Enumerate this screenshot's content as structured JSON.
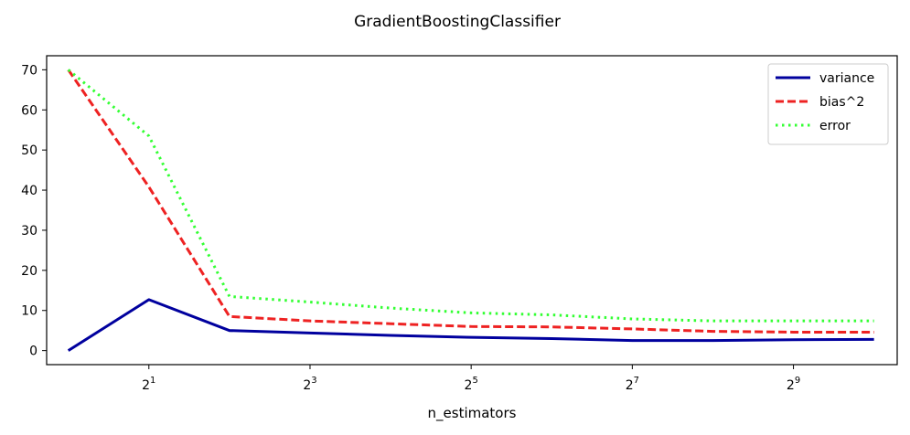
{
  "chart_data": {
    "type": "line",
    "title": "GradientBoostingClassifier",
    "xlabel": "n_estimators",
    "ylabel": "",
    "x_scale": "log2",
    "x": [
      1,
      2,
      4,
      8,
      16,
      32,
      64,
      128,
      256,
      512,
      1024
    ],
    "xlim": [
      0.83,
      1250
    ],
    "ylim": [
      -3.5,
      73.5
    ],
    "x_ticks": [
      {
        "value": 2,
        "base": "2",
        "exp": "1"
      },
      {
        "value": 8,
        "base": "2",
        "exp": "3"
      },
      {
        "value": 32,
        "base": "2",
        "exp": "5"
      },
      {
        "value": 128,
        "base": "2",
        "exp": "7"
      },
      {
        "value": 512,
        "base": "2",
        "exp": "9"
      }
    ],
    "y_ticks": [
      0,
      10,
      20,
      30,
      40,
      50,
      60,
      70
    ],
    "grid": false,
    "legend_position": "top-right",
    "series": [
      {
        "name": "variance",
        "color": "#00009e",
        "style": "solid",
        "values": [
          0.0,
          12.7,
          5.0,
          4.4,
          3.8,
          3.3,
          3.0,
          2.5,
          2.5,
          2.7,
          2.8
        ]
      },
      {
        "name": "bias^2",
        "color": "#ee2222",
        "style": "dashed",
        "values": [
          70.0,
          40.8,
          8.5,
          7.4,
          6.7,
          6.0,
          5.9,
          5.4,
          4.8,
          4.6,
          4.6
        ]
      },
      {
        "name": "error",
        "color": "#33ff33",
        "style": "dotted",
        "values": [
          70.0,
          53.5,
          13.5,
          12.1,
          10.6,
          9.4,
          8.9,
          7.9,
          7.4,
          7.4,
          7.4
        ]
      }
    ]
  }
}
